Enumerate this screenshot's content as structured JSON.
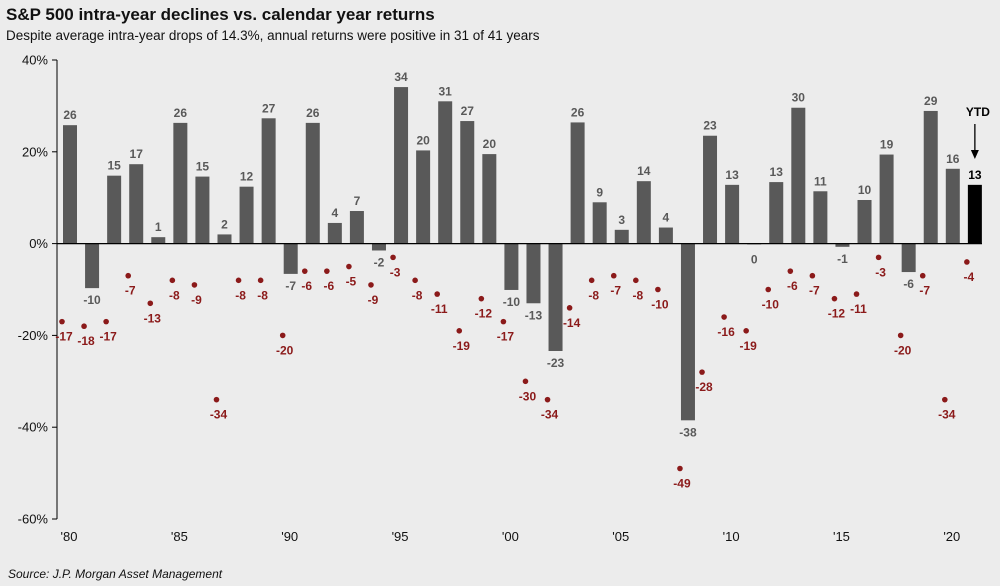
{
  "title": "S&P 500 intra-year declines vs. calendar year returns",
  "subtitle": "Despite average intra-year drops of 14.3%, annual returns were positive in 31 of 41 years",
  "source": "Source:  J.P. Morgan Asset Management",
  "colors": {
    "bar": "#595959",
    "ytd_bar": "#000000",
    "decline": "#8b1a1a",
    "axis": "#000000"
  },
  "chart_data": {
    "type": "bar",
    "title": "S&P 500 intra-year declines vs. calendar year returns",
    "x": [
      1980,
      1981,
      1982,
      1983,
      1984,
      1985,
      1986,
      1987,
      1988,
      1989,
      1990,
      1991,
      1992,
      1993,
      1994,
      1995,
      1996,
      1997,
      1998,
      1999,
      2000,
      2001,
      2002,
      2003,
      2004,
      2005,
      2006,
      2007,
      2008,
      2009,
      2010,
      2011,
      2012,
      2013,
      2014,
      2015,
      2016,
      2017,
      2018,
      2019,
      2020,
      2021
    ],
    "x_tick_labels": [
      {
        "year": 1980,
        "label": "'80"
      },
      {
        "year": 1985,
        "label": "'85"
      },
      {
        "year": 1990,
        "label": "'90"
      },
      {
        "year": 1995,
        "label": "'95"
      },
      {
        "year": 2000,
        "label": "'00"
      },
      {
        "year": 2005,
        "label": "'05"
      },
      {
        "year": 2010,
        "label": "'10"
      },
      {
        "year": 2015,
        "label": "'15"
      },
      {
        "year": 2020,
        "label": "'20"
      }
    ],
    "y_tick_labels": [
      {
        "value": 40,
        "label": "40%"
      },
      {
        "value": 20,
        "label": "20%"
      },
      {
        "value": 0,
        "label": "0%"
      },
      {
        "value": -20,
        "label": "-20%"
      },
      {
        "value": -40,
        "label": "-40%"
      },
      {
        "value": -60,
        "label": "-60%"
      }
    ],
    "ylim": [
      -60,
      40
    ],
    "grid": false,
    "series": [
      {
        "kind": "bar",
        "values": [
          25.8,
          -9.7,
          14.8,
          17.3,
          1.4,
          26.3,
          14.6,
          2.0,
          12.4,
          27.3,
          -6.6,
          26.3,
          4.5,
          7.1,
          -1.5,
          34.1,
          20.3,
          31.0,
          26.7,
          19.5,
          -10.1,
          -13.0,
          -23.4,
          26.4,
          9.0,
          3.0,
          13.6,
          3.5,
          -38.5,
          23.5,
          12.8,
          0.0,
          13.4,
          29.6,
          11.4,
          -0.7,
          9.5,
          19.4,
          -6.2,
          28.9,
          16.3,
          12.8
        ],
        "labels": [
          "26",
          "-10",
          "15",
          "17",
          "1",
          "26",
          "15",
          "2",
          "12",
          "27",
          "-7",
          "26",
          "4",
          "7",
          "-2",
          "34",
          "20",
          "31",
          "27",
          "20",
          "-10",
          "-13",
          "-23",
          "26",
          "9",
          "3",
          "14",
          "4",
          "-38",
          "23",
          "13",
          "0",
          "13",
          "30",
          "11",
          "-1",
          "10",
          "19",
          "-6",
          "29",
          "16",
          "13"
        ]
      },
      {
        "kind": "scatter",
        "values": [
          -17,
          -18,
          -17,
          -7,
          -13,
          -8,
          -9,
          -34,
          -8,
          -8,
          -20,
          -6,
          -6,
          -5,
          -9,
          -3,
          -8,
          -11,
          -19,
          -12,
          -17,
          -30,
          -34,
          -14,
          -8,
          -7,
          -8,
          -10,
          -49,
          -28,
          -16,
          -19,
          -10,
          -6,
          -7,
          -12,
          -11,
          -3,
          -20,
          -7,
          -34,
          -4
        ],
        "labels": [
          "-17",
          "-18",
          "-17",
          "-7",
          "-13",
          "-8",
          "-9",
          "-34",
          "-8",
          "-8",
          "-20",
          "-6",
          "-6",
          "-5",
          "-9",
          "-3",
          "-8",
          "-11",
          "-19",
          "-12",
          "-17",
          "-30",
          "-34",
          "-14",
          "-8",
          "-7",
          "-8",
          "-10",
          "-49",
          "-28",
          "-16",
          "-19",
          "-10",
          "-6",
          "-7",
          "-12",
          "-11",
          "-3",
          "-20",
          "-7",
          "-34",
          "-4"
        ]
      }
    ],
    "highlight": {
      "year": 2021,
      "annotation": "YTD"
    }
  }
}
